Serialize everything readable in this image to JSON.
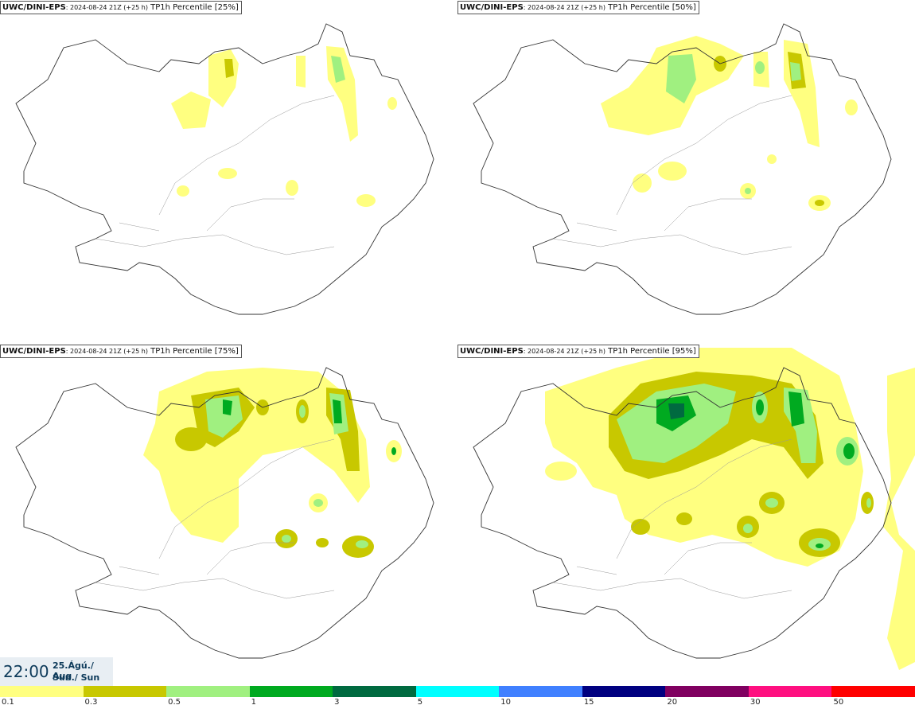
{
  "panels": [
    {
      "source": "UWC/DINI-EPS",
      "run": ": 2024-08-24 21Z (+25 h)",
      "field": " TP1h Percentile [25%]"
    },
    {
      "source": "UWC/DINI-EPS",
      "run": ": 2024-08-24 21Z (+25 h)",
      "field": " TP1h Percentile [50%]"
    },
    {
      "source": "UWC/DINI-EPS",
      "run": ": 2024-08-24 21Z (+25 h)",
      "field": " TP1h Percentile [75%]"
    },
    {
      "source": "UWC/DINI-EPS",
      "run": ": 2024-08-24 21Z (+25 h)",
      "field": " TP1h Percentile [95%]"
    }
  ],
  "valid_time": {
    "time": "22:00",
    "date": "25.Ágú./ Aug",
    "day": "Sun./ Sun"
  },
  "legend": {
    "colors": [
      "#ffff80",
      "#c8c800",
      "#a0f080",
      "#00aa20",
      "#006a40",
      "#00ffff",
      "#4080ff",
      "#000080",
      "#800060",
      "#ff1080",
      "#ff0000"
    ],
    "labels": [
      "0.1",
      "0.3",
      "0.5",
      "1",
      "3",
      "5",
      "10",
      "15",
      "20",
      "30",
      "50"
    ]
  }
}
